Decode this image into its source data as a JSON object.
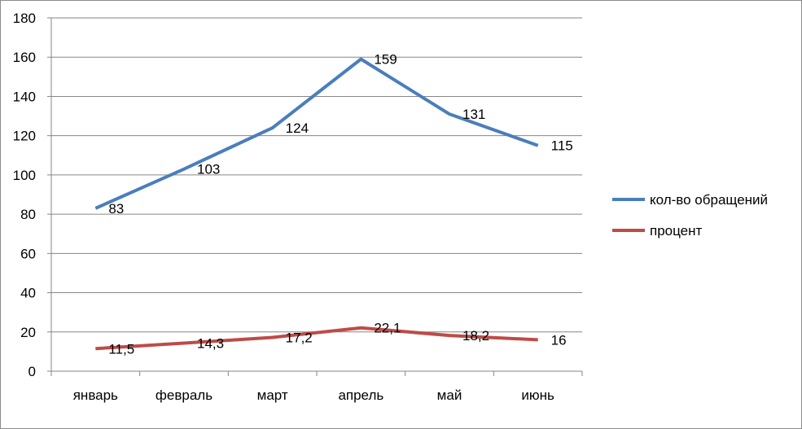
{
  "chart_data": {
    "type": "line",
    "categories": [
      "январь",
      "февраль",
      "март",
      "апрель",
      "май",
      "июнь"
    ],
    "ylim": [
      0,
      180
    ],
    "yticks": [
      0,
      20,
      40,
      60,
      80,
      100,
      120,
      140,
      160,
      180
    ],
    "grid": true,
    "legend_position": "right",
    "series": [
      {
        "name": "кол-во обращений",
        "color": "#4a7ebb",
        "values": [
          83,
          103,
          124,
          159,
          131,
          115
        ],
        "labels": [
          "83",
          "103",
          "124",
          "159",
          "131",
          "115"
        ]
      },
      {
        "name": "процент",
        "color": "#be4b48",
        "values": [
          11.5,
          14.3,
          17.2,
          22.1,
          18.2,
          16
        ],
        "labels": [
          "11,5",
          "14,3",
          "17,2",
          "22,1",
          "18,2",
          "16"
        ]
      }
    ]
  }
}
